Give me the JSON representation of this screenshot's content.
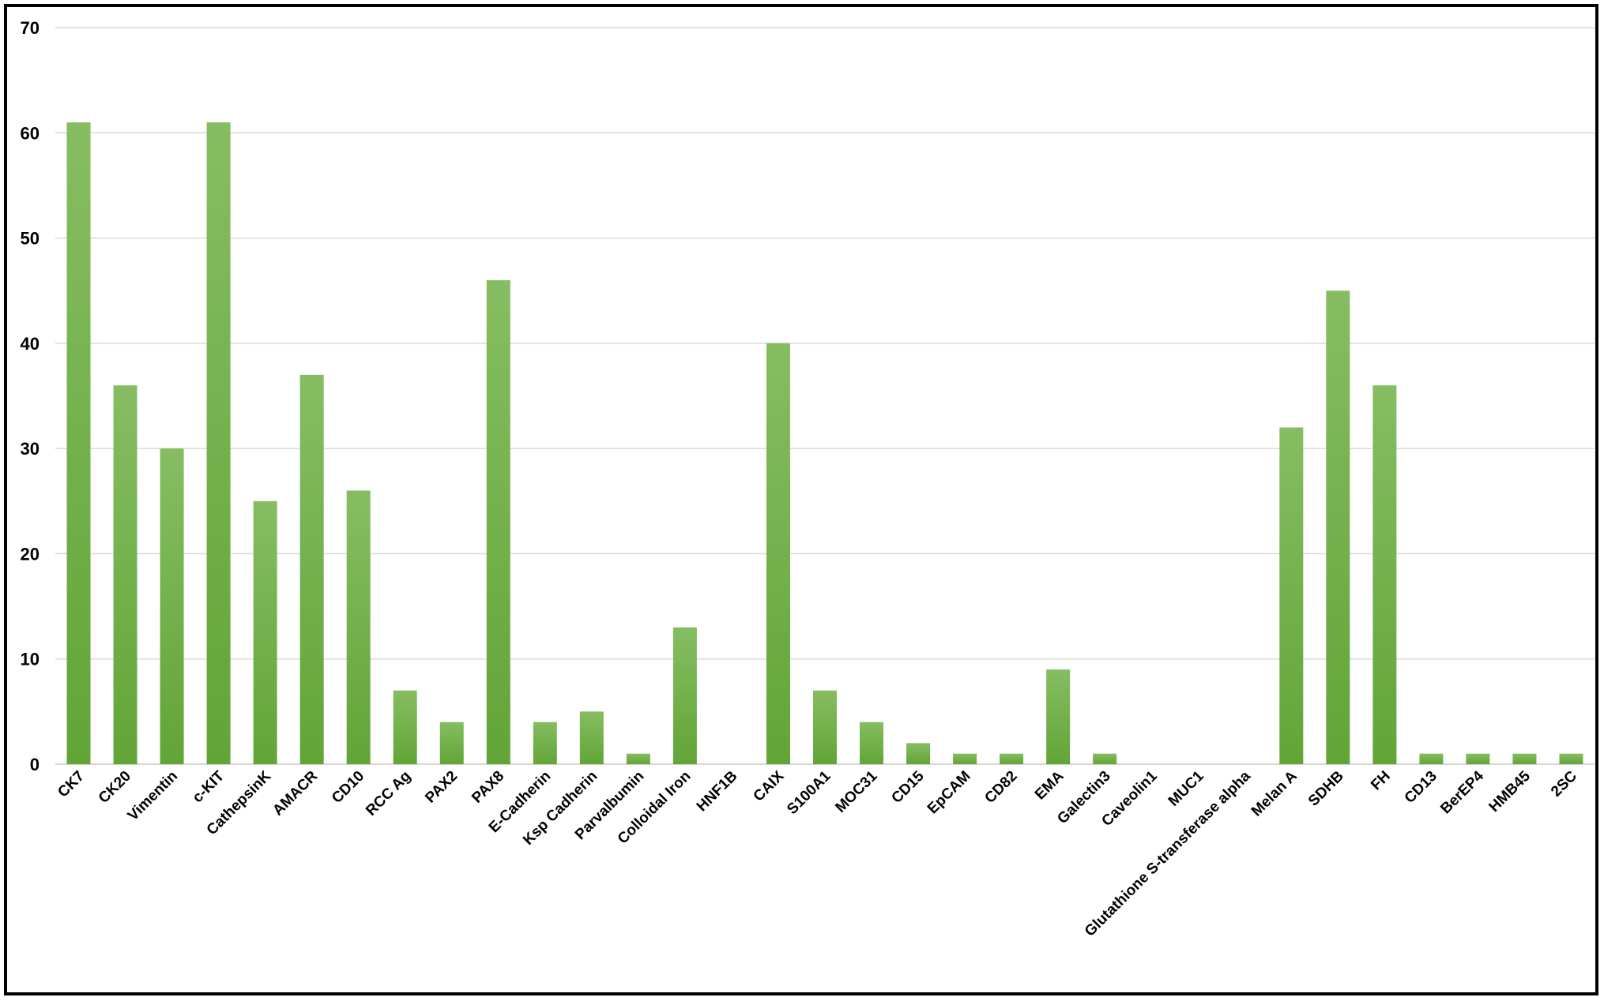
{
  "chart_data": {
    "type": "bar",
    "title": "",
    "xlabel": "",
    "ylabel": "",
    "ylim": [
      0,
      70
    ],
    "yticks": [
      0,
      10,
      20,
      30,
      40,
      50,
      60,
      70
    ],
    "grid": true,
    "legend": "none",
    "bar_color_light": "#86bd62",
    "bar_color_dark": "#62a536",
    "categories": [
      "CK7",
      "CK20",
      "Vimentin",
      "c-KIT",
      "CathepsinK",
      "AMACR",
      "CD10",
      "RCC Ag",
      "PAX2",
      "PAX8",
      "E-Cadherin",
      "Ksp Cadherin",
      "Parvalbumin",
      "Colloidal Iron",
      "HNF1B",
      "CAIX",
      "S100A1",
      "MOC31",
      "CD15",
      "EpCAM",
      "CD82",
      "EMA",
      "Galectin3",
      "Caveolin1",
      "MUC1",
      "Glutathione S-transferase alpha",
      "Melan A",
      "SDHB",
      "FH",
      "CD13",
      "BerEP4",
      "HMB45",
      "2SC"
    ],
    "values": [
      61,
      36,
      30,
      61,
      25,
      37,
      26,
      7,
      4,
      46,
      4,
      5,
      1,
      13,
      0,
      40,
      7,
      4,
      2,
      1,
      1,
      9,
      1,
      0,
      0,
      0,
      32,
      45,
      36,
      1,
      1,
      1,
      1
    ]
  }
}
